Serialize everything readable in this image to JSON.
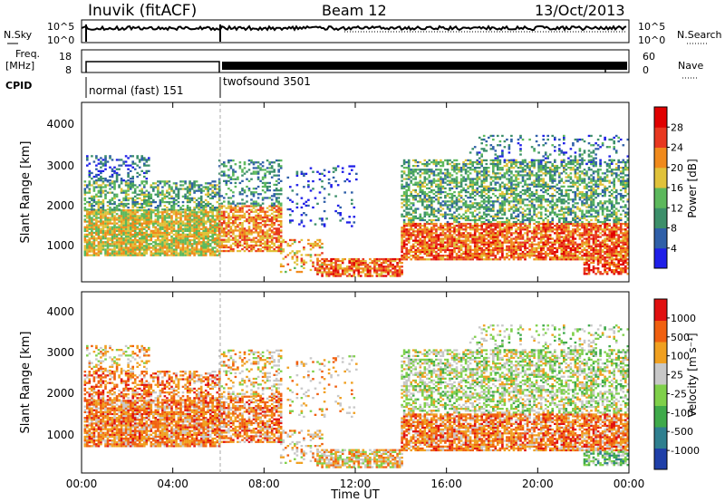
{
  "header": {
    "station": "Inuvik (fitACF)",
    "beam": "Beam 12",
    "date": "13/Oct/2013"
  },
  "noise_panel": {
    "left_label": "N.Sky",
    "right_label": "N.Search",
    "left_ticks": [
      "10^5",
      "10^0"
    ],
    "right_ticks": [
      "10^5",
      "10^0"
    ]
  },
  "freq_panel": {
    "left_label_1": "Freq.",
    "left_label_2": "[MHz]",
    "right_label": "Nave",
    "left_ticks": [
      "18",
      "8"
    ],
    "right_ticks": [
      "60",
      "0"
    ]
  },
  "cpid_panel": {
    "label": "CPID",
    "modes": [
      {
        "name": "normal (fast) 151",
        "start_h": 0,
        "end_h": 6
      },
      {
        "name": "twofsound 3501",
        "start_h": 6,
        "end_h": 24
      }
    ]
  },
  "chart_data": [
    {
      "type": "heatmap",
      "name": "power",
      "ylabel": "Slant Range [km]",
      "yticks": [
        "1000",
        "2000",
        "3000",
        "4000"
      ],
      "ylim": [
        180,
        4500
      ],
      "xlim": [
        0,
        24
      ],
      "colorbar_label": "Power [dB]",
      "colorbar_ticks": [
        "4",
        "8",
        "12",
        "16",
        "20",
        "24",
        "28"
      ],
      "colorbar_colors": [
        "#1f1fe8",
        "#2f5fa8",
        "#3c8f6a",
        "#5cb85c",
        "#e0c23a",
        "#f08a1c",
        "#e83820",
        "#e00000"
      ]
    },
    {
      "type": "heatmap",
      "name": "velocity",
      "ylabel": "Slant Range [km]",
      "yticks": [
        "1000",
        "2000",
        "3000",
        "4000"
      ],
      "ylim": [
        180,
        4500
      ],
      "xlim": [
        0,
        24
      ],
      "xlabel": "Time UT",
      "xticks": [
        "00:00",
        "04:00",
        "08:00",
        "12:00",
        "16:00",
        "20:00",
        "00:00"
      ],
      "colorbar_label": "Velocity [m s⁻¹]",
      "colorbar_ticks": [
        "1000",
        "500",
        "100",
        "25",
        "-25",
        "-100",
        "-500",
        "-1000"
      ],
      "colorbar_colors": [
        "#1f3fa8",
        "#2f7f8f",
        "#3faa4a",
        "#7fd04a",
        "#c8c8c8",
        "#f0a020",
        "#f06010",
        "#e01010"
      ]
    }
  ]
}
